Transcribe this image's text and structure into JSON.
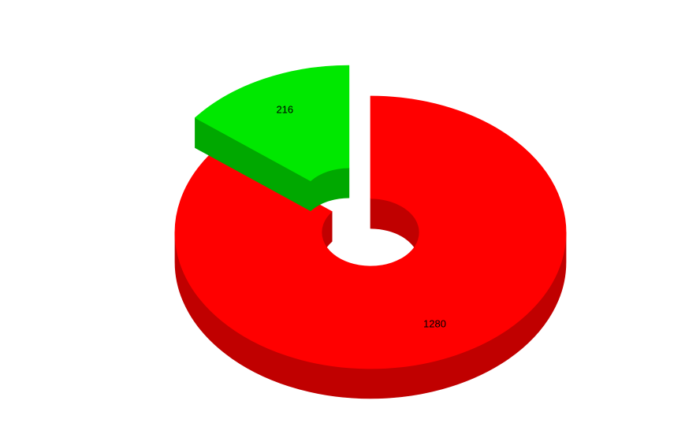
{
  "chart_data": {
    "type": "pie",
    "variant": "3d-exploded-donut",
    "title": "",
    "legend": "none",
    "background": "#ffffff",
    "label_color": "#000000",
    "total": 1496,
    "slices": [
      {
        "label": "1280",
        "value": 1280,
        "color": "#ff0000",
        "side_color": "#c00000",
        "exploded": false
      },
      {
        "label": "216",
        "value": 216,
        "color": "#00e800",
        "side_color": "#00a800",
        "exploded": true
      }
    ],
    "start_angle_deg": 90,
    "direction": "clockwise",
    "donut": true,
    "data_labels": "values"
  }
}
